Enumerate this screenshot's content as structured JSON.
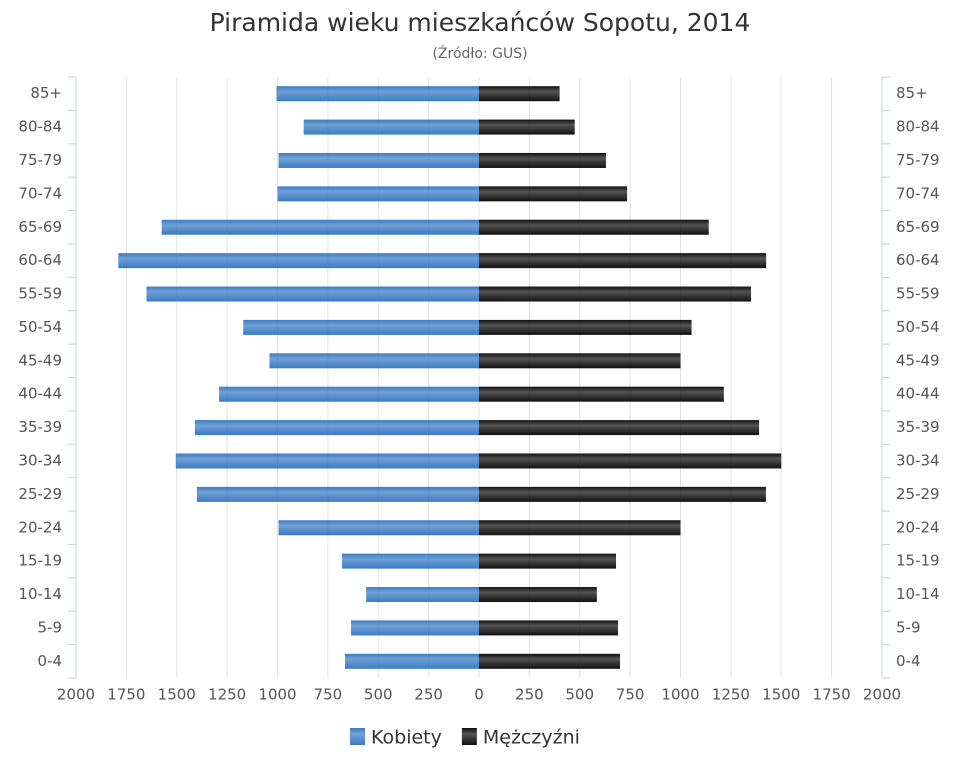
{
  "chart_data": {
    "type": "pyramid",
    "title": "Piramida wieku mieszkańców Sopotu, 2014",
    "subtitle": "(Źródło: GUS)",
    "categories": [
      "85+",
      "80-84",
      "75-79",
      "70-74",
      "65-69",
      "60-64",
      "55-59",
      "50-54",
      "45-49",
      "40-44",
      "35-39",
      "30-34",
      "25-29",
      "20-24",
      "15-19",
      "10-14",
      "5-9",
      "0-4"
    ],
    "series": [
      {
        "name": "Kobiety",
        "color": "#3b7bc4",
        "side": "left",
        "values": [
          1005,
          870,
          995,
          1000,
          1575,
          1790,
          1650,
          1170,
          1040,
          1290,
          1410,
          1505,
          1400,
          995,
          680,
          560,
          635,
          665
        ]
      },
      {
        "name": "Mężczyźni",
        "color": "#111111",
        "side": "right",
        "values": [
          400,
          475,
          630,
          735,
          1140,
          1425,
          1350,
          1055,
          1000,
          1215,
          1390,
          1500,
          1424,
          1000,
          680,
          585,
          690,
          700
        ]
      }
    ],
    "xlim": [
      -2000,
      2000
    ],
    "xticks": [
      {
        "value": -2000,
        "label": "2000"
      },
      {
        "value": -1750,
        "label": "1750"
      },
      {
        "value": -1500,
        "label": "1500"
      },
      {
        "value": -1250,
        "label": "1250"
      },
      {
        "value": -1000,
        "label": "1000"
      },
      {
        "value": -750,
        "label": "750"
      },
      {
        "value": -500,
        "label": "500"
      },
      {
        "value": -250,
        "label": "250"
      },
      0,
      250,
      500,
      750,
      1000,
      1250,
      1500,
      1750,
      2000
    ],
    "grid": true
  }
}
